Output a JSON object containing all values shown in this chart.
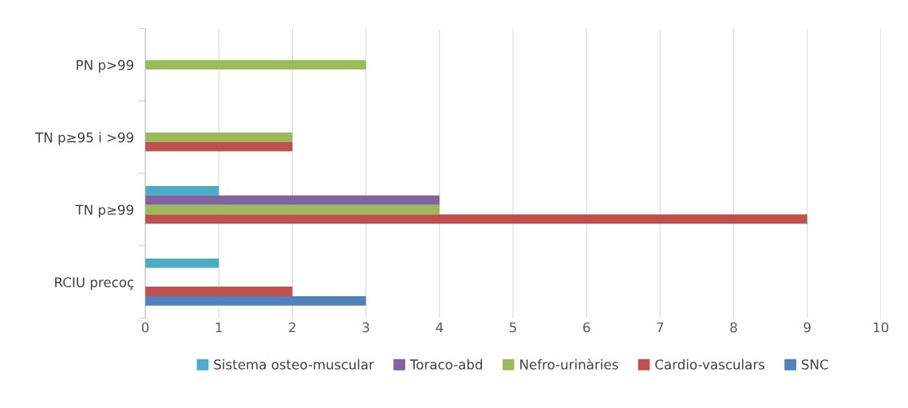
{
  "chart_data": {
    "type": "bar",
    "orientation": "horizontal",
    "categories": [
      "PN p>99",
      "TN p≥95 i >99",
      "TN p≥99",
      "RCIU precoç"
    ],
    "series": [
      {
        "name": "Sistema osteo-muscular",
        "color": "#4bacc6",
        "values": [
          null,
          null,
          1,
          1
        ]
      },
      {
        "name": "Toraco-abd",
        "color": "#8064a2",
        "values": [
          null,
          null,
          4,
          null
        ]
      },
      {
        "name": "Nefro-urinàries",
        "color": "#9bbb59",
        "values": [
          3,
          2,
          4,
          null
        ]
      },
      {
        "name": "Cardio-vasculars",
        "color": "#c0504d",
        "values": [
          null,
          2,
          9,
          2
        ]
      },
      {
        "name": "SNC",
        "color": "#4f81bd",
        "values": [
          null,
          null,
          null,
          3
        ]
      }
    ],
    "xlim": [
      0,
      10
    ],
    "xticks": [
      0,
      1,
      2,
      3,
      4,
      5,
      6,
      7,
      8,
      9,
      10
    ],
    "grid": "x",
    "legend": "bottom"
  }
}
